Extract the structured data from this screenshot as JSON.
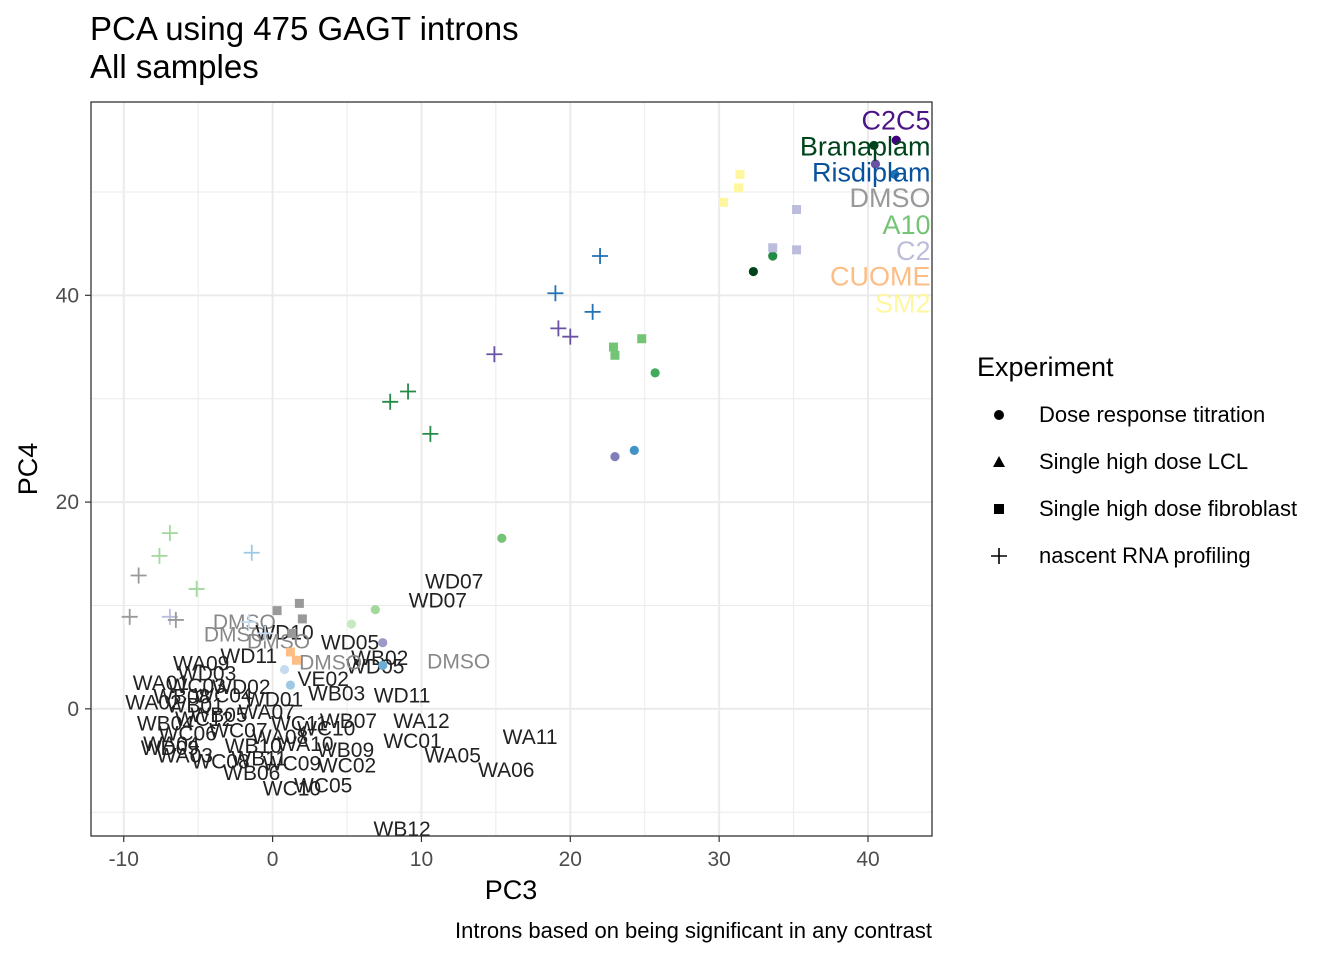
{
  "chart_data": {
    "type": "scatter",
    "title": "PCA using 475 GAGT introns",
    "subtitle": "All samples",
    "xlabel": "PC3",
    "ylabel": "PC4",
    "caption": "Introns based on being significant in any contrast",
    "xlim": [
      -12.2,
      44.3
    ],
    "ylim": [
      -12.3,
      58.7
    ],
    "xticks": [
      -10,
      0,
      10,
      20,
      30,
      40
    ],
    "yticks": [
      0,
      20,
      40
    ],
    "grid": true,
    "legend": {
      "title": "Experiment",
      "placement": "right",
      "entries": [
        {
          "label": "Dose response titration",
          "shape": "circle"
        },
        {
          "label": "Single high dose LCL",
          "shape": "triangle"
        },
        {
          "label": "Single high dose fibroblast",
          "shape": "square"
        },
        {
          "label": "nascent RNA profiling",
          "shape": "plus"
        }
      ]
    },
    "treatment_labels": [
      {
        "text": "C2C5",
        "color": "#4a1486",
        "x": 44.2,
        "y": 56.9
      },
      {
        "text": "Branaplam",
        "color": "#00441b",
        "x": 44.2,
        "y": 54.4
      },
      {
        "text": "Risdiplam",
        "color": "#08519c",
        "x": 44.2,
        "y": 51.9
      },
      {
        "text": "DMSO",
        "color": "#999999",
        "x": 44.2,
        "y": 49.4
      },
      {
        "text": "A10",
        "color": "#74c476",
        "x": 44.2,
        "y": 46.8
      },
      {
        "text": "C2",
        "color": "#bcbddc",
        "x": 44.2,
        "y": 44.3
      },
      {
        "text": "CUOME",
        "color": "#fdbe85",
        "x": 44.2,
        "y": 41.8
      },
      {
        "text": "SM2",
        "color": "#fff7a0",
        "x": 44.2,
        "y": 39.2
      }
    ],
    "series": [
      {
        "name": "Dose response titration",
        "shape": "circle",
        "points": [
          [
            41.9,
            55.0,
            "#3f007d"
          ],
          [
            40.4,
            54.5,
            "#00441b"
          ],
          [
            40.5,
            52.7,
            "#6a51a3"
          ],
          [
            41.8,
            51.7,
            "#2171b5"
          ],
          [
            32.3,
            42.3,
            "#00441b"
          ],
          [
            33.6,
            43.8,
            "#238b45"
          ],
          [
            25.7,
            32.5,
            "#41ab5d"
          ],
          [
            24.3,
            25.0,
            "#4292c6"
          ],
          [
            23.0,
            24.4,
            "#807dba"
          ],
          [
            15.4,
            16.5,
            "#74c476"
          ],
          [
            6.9,
            9.6,
            "#a1d99b"
          ],
          [
            5.3,
            8.2,
            "#c7e9c0"
          ],
          [
            7.4,
            6.4,
            "#9e9ac8"
          ],
          [
            7.4,
            4.2,
            "#6baed6"
          ],
          [
            0.8,
            3.8,
            "#c6dbef"
          ],
          [
            1.2,
            2.3,
            "#9ecae1"
          ]
        ]
      },
      {
        "name": "Single high dose fibroblast",
        "shape": "square",
        "points": [
          [
            31.4,
            51.7,
            "#fff7a0"
          ],
          [
            31.3,
            50.4,
            "#fff7a0"
          ],
          [
            30.3,
            49.0,
            "#fff7a0"
          ],
          [
            35.2,
            48.3,
            "#bcbddc"
          ],
          [
            33.6,
            44.6,
            "#bcbddc"
          ],
          [
            35.2,
            44.4,
            "#bcbddc"
          ],
          [
            24.8,
            35.8,
            "#74c476"
          ],
          [
            22.9,
            35.0,
            "#74c476"
          ],
          [
            23.0,
            34.2,
            "#74c476"
          ],
          [
            1.8,
            10.2,
            "#999999"
          ],
          [
            0.3,
            9.5,
            "#999999"
          ],
          [
            2.0,
            8.7,
            "#999999"
          ],
          [
            1.3,
            7.3,
            "#999999"
          ],
          [
            1.2,
            5.5,
            "#fdbe85"
          ],
          [
            1.6,
            4.7,
            "#fdbe85"
          ]
        ]
      },
      {
        "name": "nascent RNA profiling",
        "shape": "plus",
        "points": [
          [
            22.0,
            43.8,
            "#2171b5"
          ],
          [
            19.0,
            40.2,
            "#2171b5"
          ],
          [
            21.5,
            38.4,
            "#2171b5"
          ],
          [
            19.2,
            36.8,
            "#6a51a3"
          ],
          [
            20.0,
            36.0,
            "#6a51a3"
          ],
          [
            14.9,
            34.3,
            "#6a51a3"
          ],
          [
            9.1,
            30.7,
            "#238b45"
          ],
          [
            7.9,
            29.7,
            "#238b45"
          ],
          [
            10.6,
            26.6,
            "#238b45"
          ],
          [
            -6.9,
            17.0,
            "#a1d99b"
          ],
          [
            -7.6,
            14.8,
            "#a1d99b"
          ],
          [
            -1.4,
            15.1,
            "#9ecae1"
          ],
          [
            -5.1,
            11.6,
            "#a1d99b"
          ],
          [
            -9.0,
            12.9,
            "#999999"
          ],
          [
            -9.6,
            8.9,
            "#999999"
          ],
          [
            -6.9,
            8.9,
            "#bcbddc"
          ],
          [
            -6.5,
            8.6,
            "#999999"
          ],
          [
            -1.6,
            8.4,
            "#c6dbef"
          ],
          [
            -0.5,
            7.3,
            "#c6dbef"
          ]
        ]
      }
    ],
    "sample_labels": [
      {
        "text": "WD07",
        "x": 12.2,
        "y": 12.3,
        "color": "#222222"
      },
      {
        "text": "WD07",
        "x": 11.1,
        "y": 10.5,
        "color": "#222222"
      },
      {
        "text": "DMSO",
        "x": -1.9,
        "y": 8.4,
        "color": "#888888"
      },
      {
        "text": "DMSO",
        "x": -2.5,
        "y": 7.2,
        "color": "#888888"
      },
      {
        "text": "WD10",
        "x": 0.8,
        "y": 7.4,
        "color": "#222222"
      },
      {
        "text": "DMSO",
        "x": 0.4,
        "y": 6.5,
        "color": "#888888"
      },
      {
        "text": "WD05",
        "x": 5.2,
        "y": 6.4,
        "color": "#222222"
      },
      {
        "text": "WD11",
        "x": -1.6,
        "y": 5.1,
        "color": "#222222"
      },
      {
        "text": "WB02",
        "x": 7.2,
        "y": 4.9,
        "color": "#222222"
      },
      {
        "text": "WD05",
        "x": 6.9,
        "y": 4.1,
        "color": "#222222"
      },
      {
        "text": "DMSO",
        "x": 3.9,
        "y": 4.5,
        "color": "#888888"
      },
      {
        "text": "DMSO",
        "x": 12.5,
        "y": 4.6,
        "color": "#888888"
      },
      {
        "text": "WA09",
        "x": -4.8,
        "y": 4.4,
        "color": "#222222"
      },
      {
        "text": "WD03",
        "x": -4.4,
        "y": 3.4,
        "color": "#222222"
      },
      {
        "text": "VE02",
        "x": 3.4,
        "y": 2.9,
        "color": "#222222"
      },
      {
        "text": "WC03",
        "x": -5.1,
        "y": 2.2,
        "color": "#222222"
      },
      {
        "text": "WA01",
        "x": -7.5,
        "y": 2.5,
        "color": "#222222"
      },
      {
        "text": "WB08",
        "x": -6.1,
        "y": 1.2,
        "color": "#222222"
      },
      {
        "text": "WC04",
        "x": -3.3,
        "y": 1.3,
        "color": "#222222"
      },
      {
        "text": "WB03",
        "x": 4.3,
        "y": 1.5,
        "color": "#222222"
      },
      {
        "text": "WD11",
        "x": 8.7,
        "y": 1.3,
        "color": "#222222"
      },
      {
        "text": "WA02",
        "x": -8.0,
        "y": 0.6,
        "color": "#222222"
      },
      {
        "text": "WB01",
        "x": -5.2,
        "y": 0.3,
        "color": "#222222"
      },
      {
        "text": "WA12",
        "x": 10.0,
        "y": -1.2,
        "color": "#222222"
      },
      {
        "text": "WB07",
        "x": 5.1,
        "y": -1.2,
        "color": "#222222"
      },
      {
        "text": "WC10",
        "x": 3.6,
        "y": -1.9,
        "color": "#222222"
      },
      {
        "text": "WA11",
        "x": 17.3,
        "y": -2.7,
        "color": "#222222"
      },
      {
        "text": "WC01",
        "x": 9.4,
        "y": -3.1,
        "color": "#222222"
      },
      {
        "text": "WA05",
        "x": 12.1,
        "y": -4.5,
        "color": "#222222"
      },
      {
        "text": "WB09",
        "x": 4.9,
        "y": -4.0,
        "color": "#222222"
      },
      {
        "text": "WA06",
        "x": 15.7,
        "y": -5.9,
        "color": "#222222"
      },
      {
        "text": "WC02",
        "x": 5.0,
        "y": -5.5,
        "color": "#222222"
      },
      {
        "text": "WB04",
        "x": -7.2,
        "y": -1.4,
        "color": "#222222"
      },
      {
        "text": "WC06",
        "x": -5.7,
        "y": -2.4,
        "color": "#222222"
      },
      {
        "text": "WA04",
        "x": -6.8,
        "y": -3.4,
        "color": "#222222"
      },
      {
        "text": "WD09",
        "x": -6.9,
        "y": -3.8,
        "color": "#222222"
      },
      {
        "text": "WA03",
        "x": -5.9,
        "y": -4.5,
        "color": "#222222"
      },
      {
        "text": "WC08",
        "x": -3.5,
        "y": -5.1,
        "color": "#222222"
      },
      {
        "text": "WB06",
        "x": -1.4,
        "y": -6.2,
        "color": "#222222"
      },
      {
        "text": "WC09",
        "x": 1.3,
        "y": -5.3,
        "color": "#222222"
      },
      {
        "text": "WC05",
        "x": 3.4,
        "y": -7.4,
        "color": "#222222"
      },
      {
        "text": "WC10",
        "x": 1.3,
        "y": -7.7,
        "color": "#222222"
      },
      {
        "text": "WB12",
        "x": 8.7,
        "y": -11.6,
        "color": "#222222"
      },
      {
        "text": "WB05",
        "x": -3.6,
        "y": -0.6,
        "color": "#222222"
      },
      {
        "text": "WA07",
        "x": -0.4,
        "y": -0.3,
        "color": "#222222"
      },
      {
        "text": "WC07",
        "x": -2.3,
        "y": -2.1,
        "color": "#222222"
      },
      {
        "text": "WA08",
        "x": 0.5,
        "y": -2.7,
        "color": "#222222"
      },
      {
        "text": "WB10",
        "x": -1.3,
        "y": -3.6,
        "color": "#222222"
      },
      {
        "text": "WC11",
        "x": 1.8,
        "y": -1.4,
        "color": "#222222"
      },
      {
        "text": "WD01",
        "x": 0.1,
        "y": 0.9,
        "color": "#222222"
      },
      {
        "text": "WD02",
        "x": -2.1,
        "y": 2.1,
        "color": "#222222"
      },
      {
        "text": "WB11",
        "x": -0.9,
        "y": -4.8,
        "color": "#222222"
      },
      {
        "text": "WA10",
        "x": 2.2,
        "y": -3.4,
        "color": "#222222"
      },
      {
        "text": "WC12",
        "x": -4.6,
        "y": -1.0,
        "color": "#222222"
      }
    ]
  }
}
